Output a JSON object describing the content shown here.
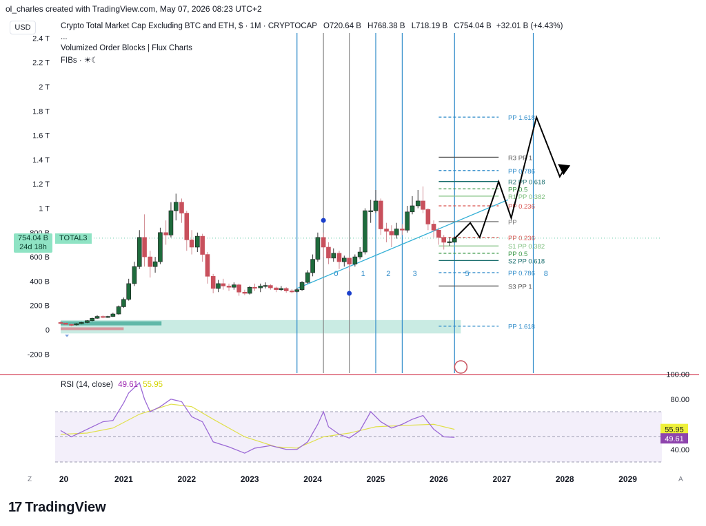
{
  "caption": "ol_charles created with TradingView.com, May 07, 2026 08:23 UTC+2",
  "currency_button": "USD",
  "legend": {
    "symbol": "Crypto Total Market Cap Excluding BTC and ETH, $ · 1M · CRYPTOCAP",
    "open": "O720.64 B",
    "high": "H768.38 B",
    "low": "L718.19 B",
    "close": "C754.04 B",
    "change": "+32.01 B (+4.43%)",
    "dots": "...",
    "indicator1": "Volumized Order Blocks | Flux Charts",
    "indicator2": "FIBs · ☀☾"
  },
  "price_tag": {
    "price": "754.04 B",
    "countdown": "24d 18h",
    "symbol": "TOTAL3"
  },
  "rsi_legend": {
    "label": "RSI (14, close)",
    "rsi_value": "49.61",
    "ma_value": "55.95"
  },
  "brand": "TradingView",
  "nav": {
    "left": "Z",
    "right": "A"
  },
  "colors": {
    "up": "#1e6b3c",
    "down": "#c8505c",
    "cycle_line": "#2e8bc9",
    "trend": "#35b0d6",
    "rsi": "#9c6ad6",
    "rsi_ma": "#e0e04a",
    "axis": "#131722",
    "divider": "#c8102e"
  },
  "chart_data": {
    "type": "candlestick",
    "timeframe": "1M",
    "y_ticks": [
      "-200 B",
      "0",
      "200 B",
      "400 B",
      "600 B",
      "800 B",
      "1 T",
      "1.2 T",
      "1.4 T",
      "1.6 T",
      "1.8 T",
      "2 T",
      "2.2 T",
      "2.4 T"
    ],
    "x_ticks": [
      "20",
      "2021",
      "2022",
      "2023",
      "2024",
      "2025",
      "2026",
      "2027",
      "2028",
      "2029"
    ],
    "ylim": [
      -300,
      2450
    ],
    "candles": [
      {
        "t": 2020.0,
        "o": 60,
        "c": 55,
        "h": 70,
        "l": 45
      },
      {
        "t": 2020.08,
        "o": 55,
        "c": 45,
        "h": 62,
        "l": 38
      },
      {
        "t": 2020.17,
        "o": 45,
        "c": 40,
        "h": 50,
        "l": 30
      },
      {
        "t": 2020.25,
        "o": 40,
        "c": 50,
        "h": 55,
        "l": 35
      },
      {
        "t": 2020.33,
        "o": 50,
        "c": 60,
        "h": 65,
        "l": 45
      },
      {
        "t": 2020.42,
        "o": 60,
        "c": 75,
        "h": 80,
        "l": 55
      },
      {
        "t": 2020.5,
        "o": 75,
        "c": 95,
        "h": 100,
        "l": 70
      },
      {
        "t": 2020.58,
        "o": 95,
        "c": 110,
        "h": 120,
        "l": 90
      },
      {
        "t": 2020.67,
        "o": 110,
        "c": 105,
        "h": 118,
        "l": 95
      },
      {
        "t": 2020.75,
        "o": 105,
        "c": 110,
        "h": 115,
        "l": 98
      },
      {
        "t": 2020.83,
        "o": 110,
        "c": 130,
        "h": 140,
        "l": 105
      },
      {
        "t": 2020.92,
        "o": 130,
        "c": 190,
        "h": 200,
        "l": 125
      },
      {
        "t": 2021.0,
        "o": 190,
        "c": 250,
        "h": 265,
        "l": 180
      },
      {
        "t": 2021.08,
        "o": 250,
        "c": 380,
        "h": 420,
        "l": 240
      },
      {
        "t": 2021.17,
        "o": 380,
        "c": 520,
        "h": 560,
        "l": 360
      },
      {
        "t": 2021.25,
        "o": 520,
        "c": 760,
        "h": 820,
        "l": 500
      },
      {
        "t": 2021.33,
        "o": 760,
        "c": 600,
        "h": 950,
        "l": 520
      },
      {
        "t": 2021.42,
        "o": 600,
        "c": 520,
        "h": 650,
        "l": 430
      },
      {
        "t": 2021.5,
        "o": 520,
        "c": 560,
        "h": 600,
        "l": 470
      },
      {
        "t": 2021.58,
        "o": 560,
        "c": 800,
        "h": 840,
        "l": 540
      },
      {
        "t": 2021.67,
        "o": 800,
        "c": 780,
        "h": 900,
        "l": 700
      },
      {
        "t": 2021.75,
        "o": 780,
        "c": 980,
        "h": 1050,
        "l": 760
      },
      {
        "t": 2021.83,
        "o": 980,
        "c": 1050,
        "h": 1120,
        "l": 900
      },
      {
        "t": 2021.92,
        "o": 1050,
        "c": 960,
        "h": 1080,
        "l": 880
      },
      {
        "t": 2022.0,
        "o": 960,
        "c": 740,
        "h": 980,
        "l": 650
      },
      {
        "t": 2022.08,
        "o": 740,
        "c": 680,
        "h": 820,
        "l": 620
      },
      {
        "t": 2022.17,
        "o": 680,
        "c": 770,
        "h": 800,
        "l": 640
      },
      {
        "t": 2022.25,
        "o": 770,
        "c": 620,
        "h": 790,
        "l": 560
      },
      {
        "t": 2022.33,
        "o": 620,
        "c": 440,
        "h": 640,
        "l": 380
      },
      {
        "t": 2022.42,
        "o": 440,
        "c": 340,
        "h": 460,
        "l": 300
      },
      {
        "t": 2022.5,
        "o": 340,
        "c": 380,
        "h": 410,
        "l": 310
      },
      {
        "t": 2022.58,
        "o": 380,
        "c": 360,
        "h": 420,
        "l": 330
      },
      {
        "t": 2022.67,
        "o": 360,
        "c": 350,
        "h": 380,
        "l": 320
      },
      {
        "t": 2022.75,
        "o": 350,
        "c": 370,
        "h": 390,
        "l": 330
      },
      {
        "t": 2022.83,
        "o": 370,
        "c": 310,
        "h": 380,
        "l": 280
      },
      {
        "t": 2022.92,
        "o": 310,
        "c": 300,
        "h": 330,
        "l": 285
      },
      {
        "t": 2023.0,
        "o": 300,
        "c": 350,
        "h": 360,
        "l": 290
      },
      {
        "t": 2023.08,
        "o": 350,
        "c": 345,
        "h": 380,
        "l": 320
      },
      {
        "t": 2023.17,
        "o": 345,
        "c": 360,
        "h": 380,
        "l": 310
      },
      {
        "t": 2023.25,
        "o": 360,
        "c": 365,
        "h": 390,
        "l": 340
      },
      {
        "t": 2023.33,
        "o": 365,
        "c": 345,
        "h": 375,
        "l": 330
      },
      {
        "t": 2023.42,
        "o": 345,
        "c": 330,
        "h": 355,
        "l": 310
      },
      {
        "t": 2023.5,
        "o": 330,
        "c": 340,
        "h": 360,
        "l": 320
      },
      {
        "t": 2023.58,
        "o": 340,
        "c": 320,
        "h": 350,
        "l": 305
      },
      {
        "t": 2023.67,
        "o": 320,
        "c": 315,
        "h": 335,
        "l": 300
      },
      {
        "t": 2023.75,
        "o": 315,
        "c": 330,
        "h": 345,
        "l": 305
      },
      {
        "t": 2023.83,
        "o": 330,
        "c": 390,
        "h": 400,
        "l": 320
      },
      {
        "t": 2023.92,
        "o": 390,
        "c": 470,
        "h": 490,
        "l": 380
      },
      {
        "t": 2024.0,
        "o": 470,
        "c": 580,
        "h": 620,
        "l": 440
      },
      {
        "t": 2024.08,
        "o": 580,
        "c": 760,
        "h": 800,
        "l": 560
      },
      {
        "t": 2024.17,
        "o": 760,
        "c": 680,
        "h": 800,
        "l": 600
      },
      {
        "t": 2024.25,
        "o": 680,
        "c": 590,
        "h": 720,
        "l": 540
      },
      {
        "t": 2024.33,
        "o": 590,
        "c": 630,
        "h": 670,
        "l": 560
      },
      {
        "t": 2024.42,
        "o": 630,
        "c": 560,
        "h": 650,
        "l": 500
      },
      {
        "t": 2024.5,
        "o": 560,
        "c": 590,
        "h": 610,
        "l": 520
      },
      {
        "t": 2024.58,
        "o": 590,
        "c": 540,
        "h": 600,
        "l": 480
      },
      {
        "t": 2024.67,
        "o": 540,
        "c": 600,
        "h": 620,
        "l": 520
      },
      {
        "t": 2024.75,
        "o": 600,
        "c": 640,
        "h": 680,
        "l": 580
      },
      {
        "t": 2024.83,
        "o": 640,
        "c": 980,
        "h": 1000,
        "l": 620
      },
      {
        "t": 2024.92,
        "o": 980,
        "c": 980,
        "h": 1070,
        "l": 880
      },
      {
        "t": 2025.0,
        "o": 980,
        "c": 1060,
        "h": 1150,
        "l": 960
      },
      {
        "t": 2025.08,
        "o": 1060,
        "c": 830,
        "h": 1080,
        "l": 780
      },
      {
        "t": 2025.17,
        "o": 830,
        "c": 810,
        "h": 880,
        "l": 720
      },
      {
        "t": 2025.25,
        "o": 810,
        "c": 780,
        "h": 860,
        "l": 680
      },
      {
        "t": 2025.33,
        "o": 780,
        "c": 830,
        "h": 880,
        "l": 750
      },
      {
        "t": 2025.42,
        "o": 830,
        "c": 820,
        "h": 870,
        "l": 780
      },
      {
        "t": 2025.5,
        "o": 820,
        "c": 970,
        "h": 1020,
        "l": 800
      },
      {
        "t": 2025.58,
        "o": 970,
        "c": 1020,
        "h": 1100,
        "l": 950
      },
      {
        "t": 2025.67,
        "o": 1020,
        "c": 1060,
        "h": 1150,
        "l": 1000
      },
      {
        "t": 2025.75,
        "o": 1060,
        "c": 990,
        "h": 1180,
        "l": 960
      },
      {
        "t": 2025.83,
        "o": 990,
        "c": 870,
        "h": 1000,
        "l": 820
      },
      {
        "t": 2025.92,
        "o": 870,
        "c": 820,
        "h": 900,
        "l": 760
      },
      {
        "t": 2026.0,
        "o": 820,
        "c": 760,
        "h": 840,
        "l": 700
      },
      {
        "t": 2026.08,
        "o": 760,
        "c": 720,
        "h": 780,
        "l": 660
      },
      {
        "t": 2026.17,
        "o": 720,
        "c": 725,
        "h": 760,
        "l": 690
      },
      {
        "t": 2026.25,
        "o": 720.64,
        "c": 754.04,
        "h": 768.38,
        "l": 718.19
      }
    ],
    "cycle_lines": [
      {
        "t": 2023.75,
        "color": "#2e8bc9"
      },
      {
        "t": 2024.17,
        "color": "#888888"
      },
      {
        "t": 2024.58,
        "color": "#888888"
      },
      {
        "t": 2025.0,
        "color": "#2e8bc9"
      },
      {
        "t": 2025.42,
        "color": "#2e8bc9"
      },
      {
        "t": 2026.25,
        "color": "#2e8bc9"
      },
      {
        "t": 2027.5,
        "color": "#2e8bc9"
      }
    ],
    "cycle_numbers": [
      {
        "t": 2024.37,
        "label": "0"
      },
      {
        "t": 2024.8,
        "label": "1"
      },
      {
        "t": 2025.2,
        "label": "2"
      },
      {
        "t": 2025.62,
        "label": "3"
      },
      {
        "t": 2026.45,
        "label": "5"
      },
      {
        "t": 2027.7,
        "label": "8"
      }
    ],
    "trendline": [
      {
        "t": 2023.75,
        "v": 340
      },
      {
        "t": 2027.1,
        "v": 1070
      }
    ],
    "pivots": [
      {
        "label": "PP 1.618",
        "v": 1750,
        "color": "#2e8bc9",
        "dashed": true
      },
      {
        "label": "R3 PP 1",
        "v": 1420,
        "color": "#555555",
        "dashed": false
      },
      {
        "label": "PP 0.786",
        "v": 1310,
        "color": "#2e8bc9",
        "dashed": true
      },
      {
        "label": "R2 PP 0.618",
        "v": 1220,
        "color": "#1a6e6e",
        "dashed": false
      },
      {
        "label": "PP 0.5",
        "v": 1160,
        "color": "#3d9a4a",
        "dashed": true
      },
      {
        "label": "R1 PP 0.382",
        "v": 1100,
        "color": "#7fbf7f",
        "dashed": false
      },
      {
        "label": "PP 0.236",
        "v": 1020,
        "color": "#d9534f",
        "dashed": true
      },
      {
        "label": "PP",
        "v": 890,
        "color": "#777777",
        "dashed": false
      },
      {
        "label": "PP 0.236",
        "v": 760,
        "color": "#d9534f",
        "dashed": true
      },
      {
        "label": "S1 PP 0.382",
        "v": 690,
        "color": "#7fbf7f",
        "dashed": false
      },
      {
        "label": "PP 0.5",
        "v": 630,
        "color": "#3d9a4a",
        "dashed": true
      },
      {
        "label": "S2 PP 0.618",
        "v": 570,
        "color": "#1a6e6e",
        "dashed": false
      },
      {
        "label": "PP 0.786",
        "v": 470,
        "color": "#2e8bc9",
        "dashed": true
      },
      {
        "label": "S3 PP 1",
        "v": 360,
        "color": "#555555",
        "dashed": false
      },
      {
        "label": "PP 1.618",
        "v": 30,
        "color": "#2e8bc9",
        "dashed": true
      }
    ],
    "projection": [
      {
        "t": 2026.25,
        "v": 750
      },
      {
        "t": 2026.5,
        "v": 880
      },
      {
        "t": 2026.65,
        "v": 760
      },
      {
        "t": 2026.95,
        "v": 1220
      },
      {
        "t": 2027.15,
        "v": 920
      },
      {
        "t": 2027.55,
        "v": 1750
      },
      {
        "t": 2027.92,
        "v": 1260
      },
      {
        "t": 2028.0,
        "v": 1330
      }
    ],
    "rsi": {
      "ticks": [
        "40.00",
        "80.00",
        "100.00"
      ],
      "ylim": [
        22,
        106
      ],
      "band": [
        30,
        70
      ],
      "mid": 50,
      "values": [
        {
          "t": 2020.0,
          "v": 55
        },
        {
          "t": 2020.17,
          "v": 50
        },
        {
          "t": 2020.42,
          "v": 56
        },
        {
          "t": 2020.67,
          "v": 62
        },
        {
          "t": 2020.83,
          "v": 63
        },
        {
          "t": 2021.0,
          "v": 77
        },
        {
          "t": 2021.08,
          "v": 85
        },
        {
          "t": 2021.25,
          "v": 93
        },
        {
          "t": 2021.33,
          "v": 80
        },
        {
          "t": 2021.42,
          "v": 70
        },
        {
          "t": 2021.58,
          "v": 74
        },
        {
          "t": 2021.75,
          "v": 80
        },
        {
          "t": 2021.92,
          "v": 78
        },
        {
          "t": 2022.08,
          "v": 66
        },
        {
          "t": 2022.25,
          "v": 62
        },
        {
          "t": 2022.42,
          "v": 46
        },
        {
          "t": 2022.67,
          "v": 42
        },
        {
          "t": 2022.92,
          "v": 37
        },
        {
          "t": 2023.08,
          "v": 41
        },
        {
          "t": 2023.33,
          "v": 43
        },
        {
          "t": 2023.58,
          "v": 40
        },
        {
          "t": 2023.75,
          "v": 40
        },
        {
          "t": 2023.92,
          "v": 46
        },
        {
          "t": 2024.08,
          "v": 60
        },
        {
          "t": 2024.17,
          "v": 70
        },
        {
          "t": 2024.25,
          "v": 58
        },
        {
          "t": 2024.42,
          "v": 52
        },
        {
          "t": 2024.58,
          "v": 49
        },
        {
          "t": 2024.75,
          "v": 55
        },
        {
          "t": 2024.92,
          "v": 70
        },
        {
          "t": 2025.08,
          "v": 62
        },
        {
          "t": 2025.25,
          "v": 57
        },
        {
          "t": 2025.42,
          "v": 60
        },
        {
          "t": 2025.58,
          "v": 64
        },
        {
          "t": 2025.75,
          "v": 67
        },
        {
          "t": 2025.92,
          "v": 56
        },
        {
          "t": 2026.08,
          "v": 50
        },
        {
          "t": 2026.25,
          "v": 49.61
        }
      ],
      "ma": [
        {
          "t": 2020.0,
          "v": 52
        },
        {
          "t": 2020.42,
          "v": 53
        },
        {
          "t": 2020.83,
          "v": 57
        },
        {
          "t": 2021.25,
          "v": 68
        },
        {
          "t": 2021.75,
          "v": 76
        },
        {
          "t": 2022.08,
          "v": 74
        },
        {
          "t": 2022.42,
          "v": 64
        },
        {
          "t": 2022.92,
          "v": 50
        },
        {
          "t": 2023.42,
          "v": 42
        },
        {
          "t": 2023.75,
          "v": 41
        },
        {
          "t": 2024.17,
          "v": 50
        },
        {
          "t": 2024.58,
          "v": 53
        },
        {
          "t": 2025.0,
          "v": 58
        },
        {
          "t": 2025.42,
          "v": 59
        },
        {
          "t": 2025.92,
          "v": 60
        },
        {
          "t": 2026.25,
          "v": 55.95
        }
      ]
    }
  }
}
